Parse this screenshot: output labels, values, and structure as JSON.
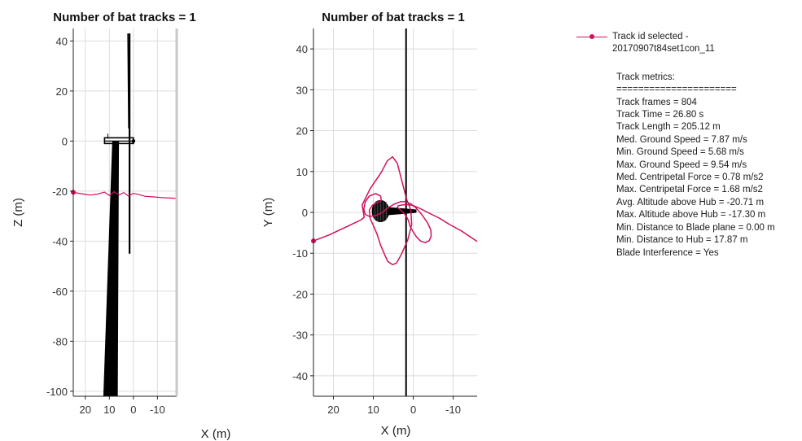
{
  "chart_data": [
    {
      "type": "line",
      "title": "Number of bat tracks = 1",
      "xlabel": "X (m)",
      "ylabel": "Z (m)",
      "xlim": [
        -18,
        25
      ],
      "ylim": [
        -102,
        45
      ],
      "x_reversed": true,
      "xticks": [
        20,
        10,
        0,
        -10
      ],
      "xtick_labels": [
        "20",
        "10",
        "0",
        "-10"
      ],
      "yticks": [
        40,
        20,
        0,
        -20,
        -40,
        -60,
        -80,
        -100
      ],
      "ytick_labels": [
        "40",
        "20",
        "0",
        "-20",
        "-40",
        "-60",
        "-80",
        "-100"
      ],
      "grid": true,
      "series": [
        {
          "color": "#000000",
          "tower": {
            "x_base": [
              12.5,
              6.5
            ],
            "x_top": [
              8.8,
              6.0
            ],
            "y_base": -102,
            "y_top": 0
          },
          "nacelle_y": 0,
          "nacelle_x": [
            12,
            0
          ],
          "blade_x": 1.6,
          "blade_y": [
            -45,
            43
          ]
        },
        {
          "color": "#d0105c",
          "start": {
            "x": 25,
            "y": -20.5
          },
          "x": [
            25,
            22,
            18,
            15,
            12,
            10,
            8,
            6,
            4,
            2,
            0,
            -2,
            -5,
            -8,
            -12,
            -16,
            -18
          ],
          "y": [
            -20.5,
            -21,
            -21.6,
            -21.2,
            -20.4,
            -21.8,
            -20.2,
            -21.5,
            -20.6,
            -22,
            -20.9,
            -21.3,
            -22.1,
            -22.3,
            -22.6,
            -22.8,
            -22.9
          ]
        }
      ]
    },
    {
      "type": "line",
      "title": "Number of bat tracks = 1",
      "xlabel": "X (m)",
      "ylabel": "Y (m)",
      "xlim": [
        -16,
        25
      ],
      "ylim": [
        -45,
        45
      ],
      "x_reversed": true,
      "xticks": [
        20,
        10,
        0,
        -10
      ],
      "xtick_labels": [
        "20",
        "10",
        "0",
        "-10"
      ],
      "yticks": [
        40,
        30,
        20,
        10,
        0,
        -10,
        -20,
        -30,
        -40
      ],
      "ytick_labels": [
        "40",
        "30",
        "20",
        "10",
        "0",
        "-10",
        "-20",
        "-30",
        "-40"
      ],
      "grid": true,
      "series": [
        {
          "color": "#000000",
          "blade_plane_x": 1.8,
          "hub_blob": {
            "cx": 8.2,
            "cy": 0.3,
            "rx": 2.1,
            "ry": 2.6
          },
          "nacelle": {
            "x": [
              6.4,
              -0.8
            ],
            "y": 0.3
          }
        },
        {
          "color": "#d0105c",
          "start": {
            "x": 25,
            "y": -7
          },
          "x": [
            25,
            21,
            16,
            13,
            12.3,
            12.8,
            10.8,
            8,
            6.5,
            5.2,
            4,
            2.8,
            1.6,
            0.6,
            0.4,
            1.4,
            3,
            4.2,
            5.2,
            6.4,
            7.2,
            8.2,
            9,
            10,
            10.8,
            11,
            10.2,
            9,
            8,
            8.2,
            9.4,
            11,
            12,
            12.4,
            12,
            11,
            9.5,
            8.5,
            7.8,
            7.2,
            7.2,
            6.2,
            4.8,
            3.2,
            2,
            0.8,
            -0.6,
            -2.2,
            -3.6,
            -4.4,
            -4.5,
            -4,
            -3,
            -1.8,
            -0.8,
            0,
            0.8,
            1.2,
            2,
            3.2,
            4,
            3.8,
            3,
            1.8,
            0.6,
            -0.2,
            -1.8,
            -4,
            -6.5,
            -9,
            -12,
            -16
          ],
          "y": [
            -7,
            -5.5,
            -3.2,
            -1.8,
            -1.2,
            1.8,
            5.8,
            9.8,
            12.6,
            13.6,
            12,
            7.5,
            3,
            0.6,
            -3,
            -6.8,
            -10.3,
            -12.4,
            -12.8,
            -12,
            -10.3,
            -8,
            -5.5,
            -3.2,
            -1.5,
            0.6,
            1.8,
            2.4,
            2.9,
            4,
            4.6,
            4,
            2.6,
            0.8,
            -0.5,
            -1,
            -0.8,
            -0.4,
            0,
            0.3,
            0.5,
            1.2,
            2,
            2.6,
            2.6,
            2.2,
            1.2,
            -0.6,
            -2.6,
            -4.3,
            -5.8,
            -6.9,
            -7.4,
            -7,
            -6,
            -4.8,
            -3.4,
            -2,
            -0.6,
            0.6,
            1.2,
            1.6,
            1.8,
            1.9,
            1.8,
            1.6,
            0.9,
            -0.2,
            -1.4,
            -2.9,
            -4.5,
            -7.1
          ]
        }
      ]
    }
  ],
  "legend": {
    "label": "Track id selected -\n20170907t84set1con_11",
    "line_color": "#d0105c"
  },
  "metrics": {
    "heading": "Track metrics:",
    "separator": "======================",
    "lines": [
      "Track frames = 804",
      "Track Time = 26.80 s",
      "Track Length = 205.12 m",
      "Med. Ground Speed = 7.87 m/s",
      "Min. Ground Speed = 5.68 m/s",
      "Max. Ground Speed = 9.54 m/s",
      "Med. Centripetal Force = 0.78 m/s2",
      "Max. Centripetal Force = 1.68 m/s2",
      "Avg. Altitude above Hub = -20.71 m",
      "Max. Altitude above Hub = -17.30 m",
      "Min. Distance to Blade plane = 0.00 m",
      "Min. Distance to Hub = 17.87 m",
      "Blade Interference = Yes"
    ]
  }
}
